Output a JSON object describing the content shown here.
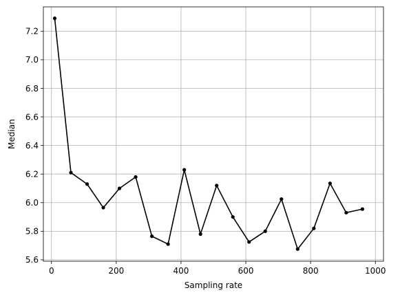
{
  "chart_data": {
    "type": "line",
    "title": "",
    "xlabel": "Sampling rate",
    "ylabel": "Median",
    "xlim": [
      -25,
      1025
    ],
    "ylim": [
      5.59,
      7.37
    ],
    "xticks": [
      0,
      200,
      400,
      600,
      800,
      1000
    ],
    "yticks": [
      5.6,
      5.8,
      6.0,
      6.2,
      6.4,
      6.6,
      6.8,
      7.0,
      7.2
    ],
    "grid": true,
    "legend": "none",
    "series": [
      {
        "color": "#000000",
        "marker": "dot",
        "x": [
          10,
          60,
          110,
          160,
          210,
          260,
          310,
          360,
          410,
          460,
          510,
          560,
          610,
          660,
          710,
          760,
          810,
          860,
          910,
          960
        ],
        "y": [
          7.29,
          6.21,
          6.13,
          5.965,
          6.1,
          6.18,
          5.765,
          5.71,
          6.23,
          5.78,
          6.12,
          5.9,
          5.725,
          5.8,
          6.025,
          5.675,
          5.82,
          6.135,
          5.93,
          5.955
        ]
      }
    ]
  }
}
